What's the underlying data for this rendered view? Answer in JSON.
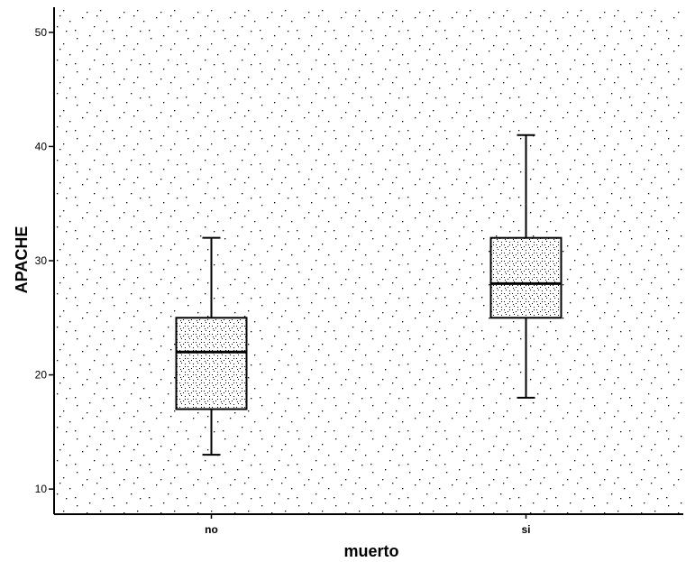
{
  "chart_data": {
    "type": "box",
    "xlabel": "muerto",
    "ylabel": "APACHE",
    "ylim": [
      7.8,
      52.2
    ],
    "yticks": [
      10,
      20,
      30,
      40,
      50
    ],
    "categories": [
      "no",
      "si"
    ],
    "boxes": [
      {
        "category": "no",
        "whisker_low": 13,
        "q1": 17,
        "median": 22,
        "q3": 25,
        "whisker_high": 32
      },
      {
        "category": "si",
        "whisker_low": 18,
        "q1": 25,
        "median": 28,
        "q3": 32,
        "whisker_high": 41
      }
    ],
    "grid": false,
    "background": "stippled",
    "colors": {
      "line": "#000000",
      "box_fill": "#ececec",
      "background": "#ffffff"
    }
  }
}
